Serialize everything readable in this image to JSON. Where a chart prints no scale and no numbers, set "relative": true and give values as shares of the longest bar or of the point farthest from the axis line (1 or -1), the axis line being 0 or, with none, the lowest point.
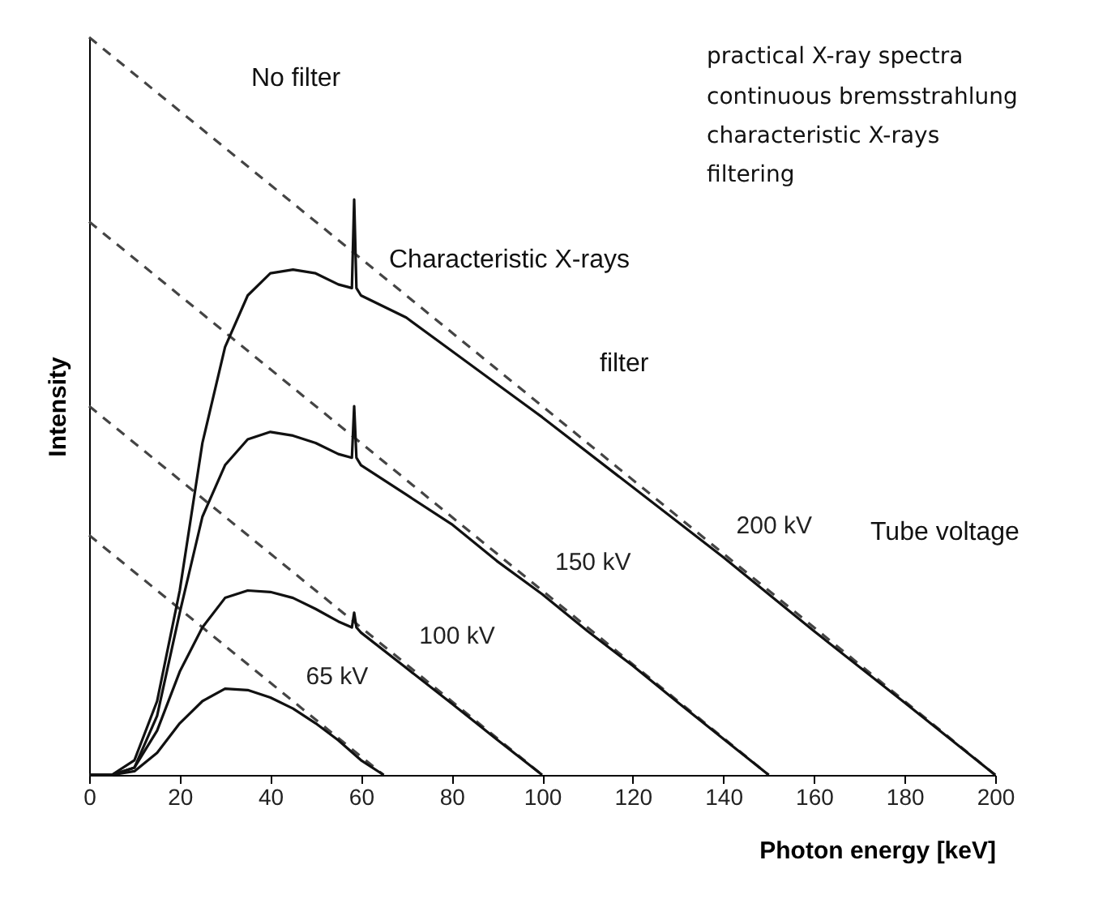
{
  "chart_data": {
    "type": "line",
    "relative": true,
    "xlabel": "Photon energy [keV]",
    "ylabel": "Intensity",
    "xlim": [
      0,
      200
    ],
    "xticks": [
      0,
      20,
      40,
      60,
      80,
      100,
      120,
      140,
      160,
      180,
      200
    ],
    "series": [
      {
        "color": "#444444",
        "line_style": "dashed",
        "x": [
          0,
          200
        ],
        "values": [
          1,
          0
        ]
      },
      {
        "color": "#444444",
        "line_style": "dashed",
        "x": [
          0,
          150
        ],
        "values": [
          0.75,
          0
        ]
      },
      {
        "color": "#444444",
        "line_style": "dashed",
        "x": [
          0,
          100
        ],
        "values": [
          0.5,
          0
        ]
      },
      {
        "color": "#444444",
        "line_style": "dashed",
        "x": [
          0,
          65
        ],
        "values": [
          0.325,
          0
        ]
      },
      {
        "name": "200 kV",
        "color": "#111111",
        "x": [
          0,
          5,
          10,
          15,
          20,
          25,
          30,
          35,
          40,
          45,
          50,
          55,
          58,
          58.5,
          59,
          60,
          70,
          80,
          90,
          100,
          120,
          140,
          160,
          180,
          200
        ],
        "values": [
          0,
          0,
          0.02,
          0.1,
          0.25,
          0.45,
          0.58,
          0.65,
          0.68,
          0.685,
          0.68,
          0.665,
          0.66,
          0.78,
          0.66,
          0.65,
          0.62,
          0.575,
          0.53,
          0.485,
          0.39,
          0.295,
          0.195,
          0.098,
          0
        ]
      },
      {
        "name": "150 kV",
        "color": "#111111",
        "x": [
          0,
          5,
          10,
          15,
          20,
          25,
          30,
          35,
          40,
          45,
          50,
          55,
          58,
          58.5,
          59,
          60,
          70,
          80,
          90,
          100,
          110,
          120,
          130,
          140,
          150
        ],
        "values": [
          0,
          0,
          0.01,
          0.08,
          0.22,
          0.35,
          0.42,
          0.455,
          0.465,
          0.46,
          0.45,
          0.435,
          0.43,
          0.5,
          0.43,
          0.42,
          0.38,
          0.34,
          0.29,
          0.245,
          0.195,
          0.148,
          0.098,
          0.049,
          0
        ]
      },
      {
        "name": "100 kV",
        "color": "#111111",
        "x": [
          0,
          5,
          10,
          15,
          20,
          25,
          30,
          35,
          40,
          45,
          50,
          55,
          58,
          58.5,
          59,
          60,
          70,
          80,
          90,
          100
        ],
        "values": [
          0,
          0,
          0.01,
          0.06,
          0.14,
          0.2,
          0.24,
          0.25,
          0.248,
          0.24,
          0.225,
          0.208,
          0.2,
          0.22,
          0.2,
          0.193,
          0.145,
          0.097,
          0.048,
          0
        ]
      },
      {
        "name": "65 kV",
        "color": "#111111",
        "x": [
          0,
          5,
          10,
          15,
          20,
          25,
          30,
          35,
          40,
          45,
          50,
          55,
          60,
          65
        ],
        "values": [
          0,
          0,
          0.005,
          0.03,
          0.07,
          0.1,
          0.117,
          0.115,
          0.105,
          0.09,
          0.07,
          0.047,
          0.02,
          0
        ]
      }
    ],
    "annotations": [
      "No filter",
      "Characteristic X-rays",
      "filter",
      "Tube voltage",
      "practical X-ray spectra",
      "continuous bremsstrahlung",
      "characteristic X-rays",
      "filtering"
    ]
  }
}
